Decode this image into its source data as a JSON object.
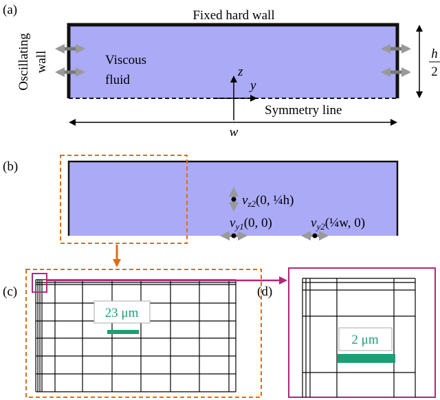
{
  "panel_a": {
    "label": "(a)",
    "top_wall": "Fixed hard wall",
    "oscillating_wall": [
      "Oscillating",
      "wall"
    ],
    "fluid": [
      "Viscous",
      "fluid"
    ],
    "z_axis": "z",
    "y_axis": "y",
    "half_height": {
      "num": "h",
      "den": "2"
    },
    "symmetry": "Symmetry line",
    "width": "w"
  },
  "panel_b": {
    "label": "(b)",
    "points": [
      {
        "v": "v",
        "sub": "z2",
        "args": "(0, ¼h)"
      },
      {
        "v": "v",
        "sub": "y1",
        "args": "(0, 0)"
      },
      {
        "v": "v",
        "sub": "y2",
        "args": "(¼w, 0)"
      }
    ]
  },
  "panel_c": {
    "label": "(c)",
    "scale": "23 μm"
  },
  "panel_d": {
    "label": "(d)",
    "scale": "2 μm"
  }
}
